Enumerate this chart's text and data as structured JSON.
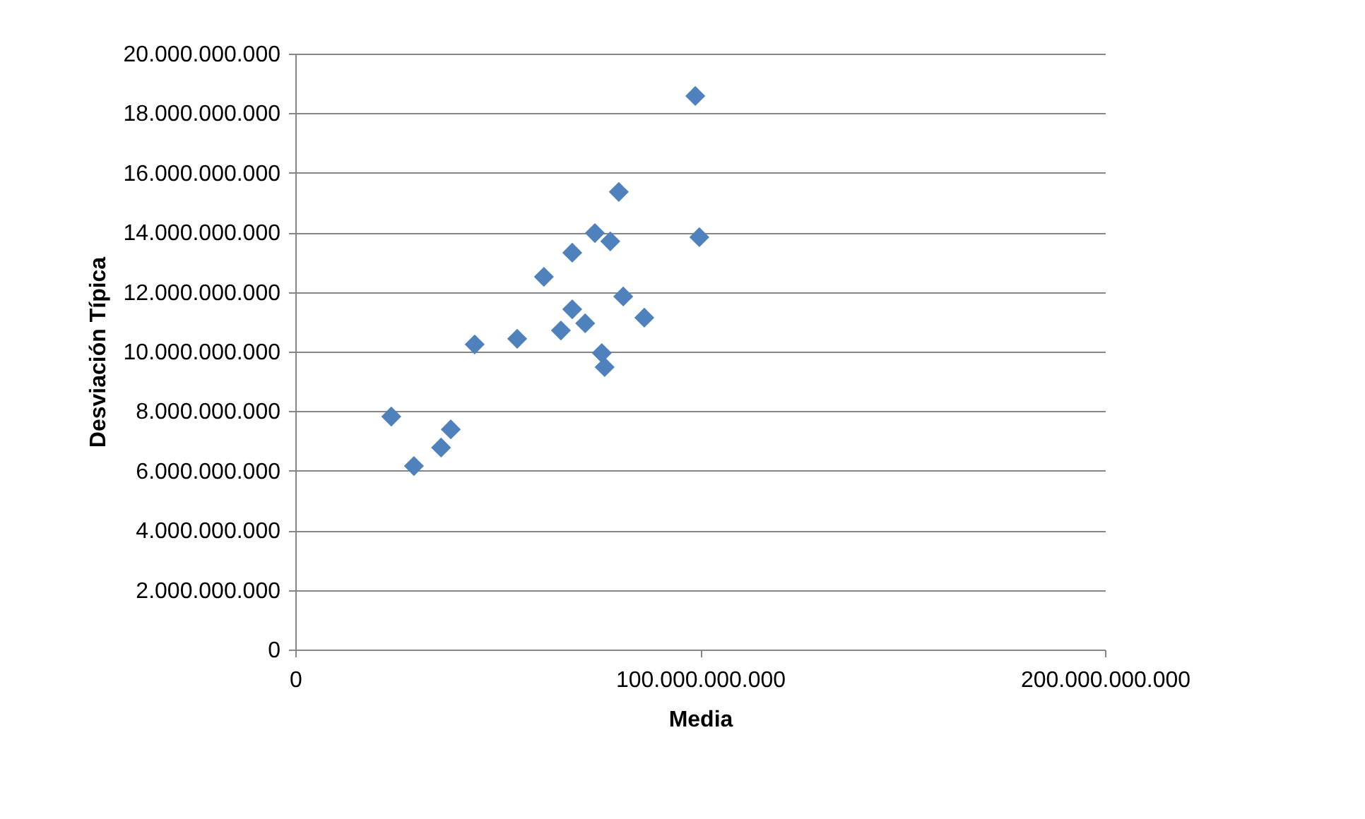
{
  "chart_data": {
    "type": "scatter",
    "xlabel": "Media",
    "ylabel": "Desviación Típica",
    "x": [
      23700000000,
      29300000000,
      36000000000,
      38400000000,
      44300000000,
      54800000000,
      61400000000,
      65600000000,
      68400000000,
      68400000000,
      71600000000,
      74000000000,
      75700000000,
      76400000000,
      77800000000,
      79900000000,
      81000000000,
      86200000000,
      98800000000,
      99800000000
    ],
    "series": [
      {
        "color": "#4f81bd",
        "values": [
          7820000000,
          6160000000,
          6780000000,
          7390000000,
          10240000000,
          10430000000,
          12510000000,
          10710000000,
          13320000000,
          11420000000,
          10950000000,
          13980000000,
          9950000000,
          9480000000,
          13700000000,
          15360000000,
          11850000000,
          11140000000,
          18580000000,
          13840000000
        ]
      }
    ],
    "marker": "diamond",
    "grid": "y",
    "xlim": [
      0,
      200000000000
    ],
    "xticks": [
      0,
      {
        "value": 100000000000,
        "label": "100.000.000.000"
      },
      {
        "value": 200000000000,
        "label": "200.000.000.000"
      }
    ],
    "ylim": [
      0,
      20000000000
    ],
    "yticks": [
      0,
      {
        "value": 2000000000,
        "label": "2.000.000.000"
      },
      {
        "value": 4000000000,
        "label": "4.000.000.000"
      },
      {
        "value": 6000000000,
        "label": "6.000.000.000"
      },
      {
        "value": 8000000000,
        "label": "8.000.000.000"
      },
      {
        "value": 10000000000,
        "label": "10.000.000.000"
      },
      {
        "value": 12000000000,
        "label": "12.000.000.000"
      },
      {
        "value": 14000000000,
        "label": "14.000.000.000"
      },
      {
        "value": 16000000000,
        "label": "16.000.000.000"
      },
      {
        "value": 18000000000,
        "label": "18.000.000.000"
      },
      {
        "value": 20000000000,
        "label": "20.000.000.000"
      }
    ]
  }
}
